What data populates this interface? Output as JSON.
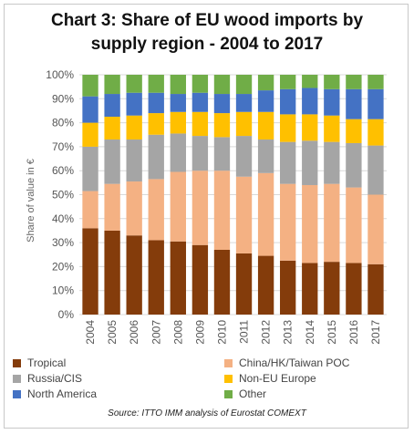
{
  "chart_data": {
    "type": "bar",
    "stacked": true,
    "title_line1": "Chart 3: Share of EU wood imports by",
    "title_line2": "supply region - 2004 to 2017",
    "ylabel": "Share of value in €",
    "xlabel": "",
    "ylim": [
      0,
      100
    ],
    "yticks": [
      "0%",
      "10%",
      "20%",
      "30%",
      "40%",
      "50%",
      "60%",
      "70%",
      "80%",
      "90%",
      "100%"
    ],
    "grid": true,
    "legend_position": "bottom",
    "categories": [
      "2004",
      "2005",
      "2006",
      "2007",
      "2008",
      "2009",
      "2010",
      "2011",
      "2012",
      "2013",
      "2014",
      "2015",
      "2016",
      "2017"
    ],
    "series": [
      {
        "name": "Tropical",
        "color": "#843c0b",
        "values": [
          36,
          35,
          33,
          31,
          30.5,
          29,
          27,
          25.5,
          24.5,
          22.5,
          21.5,
          22,
          21.5,
          21
        ]
      },
      {
        "name": "China/HK/Taiwan POC",
        "color": "#f4b183",
        "values": [
          15.5,
          19.5,
          22.5,
          25.5,
          29,
          31,
          33,
          32,
          34.5,
          32,
          32.5,
          32.5,
          31.5,
          29
        ]
      },
      {
        "name": "Russia/CIS",
        "color": "#a5a5a5",
        "values": [
          18.5,
          18.5,
          17.5,
          18.5,
          16,
          14.5,
          14,
          17,
          14,
          17.5,
          18.5,
          17.5,
          18.5,
          20.5
        ]
      },
      {
        "name": "Non-EU Europe",
        "color": "#ffc000",
        "values": [
          10,
          9.5,
          10,
          9,
          9,
          10,
          10,
          10,
          11.5,
          11.5,
          11,
          11,
          10,
          11
        ]
      },
      {
        "name": "North America",
        "color": "#4472c4",
        "values": [
          11,
          9.5,
          9.5,
          8.5,
          7.5,
          8,
          8,
          7.5,
          9,
          10.5,
          11,
          11,
          12.5,
          12.5
        ]
      },
      {
        "name": "Other",
        "color": "#70ad47",
        "values": [
          9,
          8,
          7.5,
          7.5,
          8,
          7.5,
          8,
          8,
          6.5,
          6,
          5.5,
          6,
          6,
          6
        ]
      }
    ],
    "source": "Source: ITTO IMM analysis of Eurostat COMEXT"
  }
}
